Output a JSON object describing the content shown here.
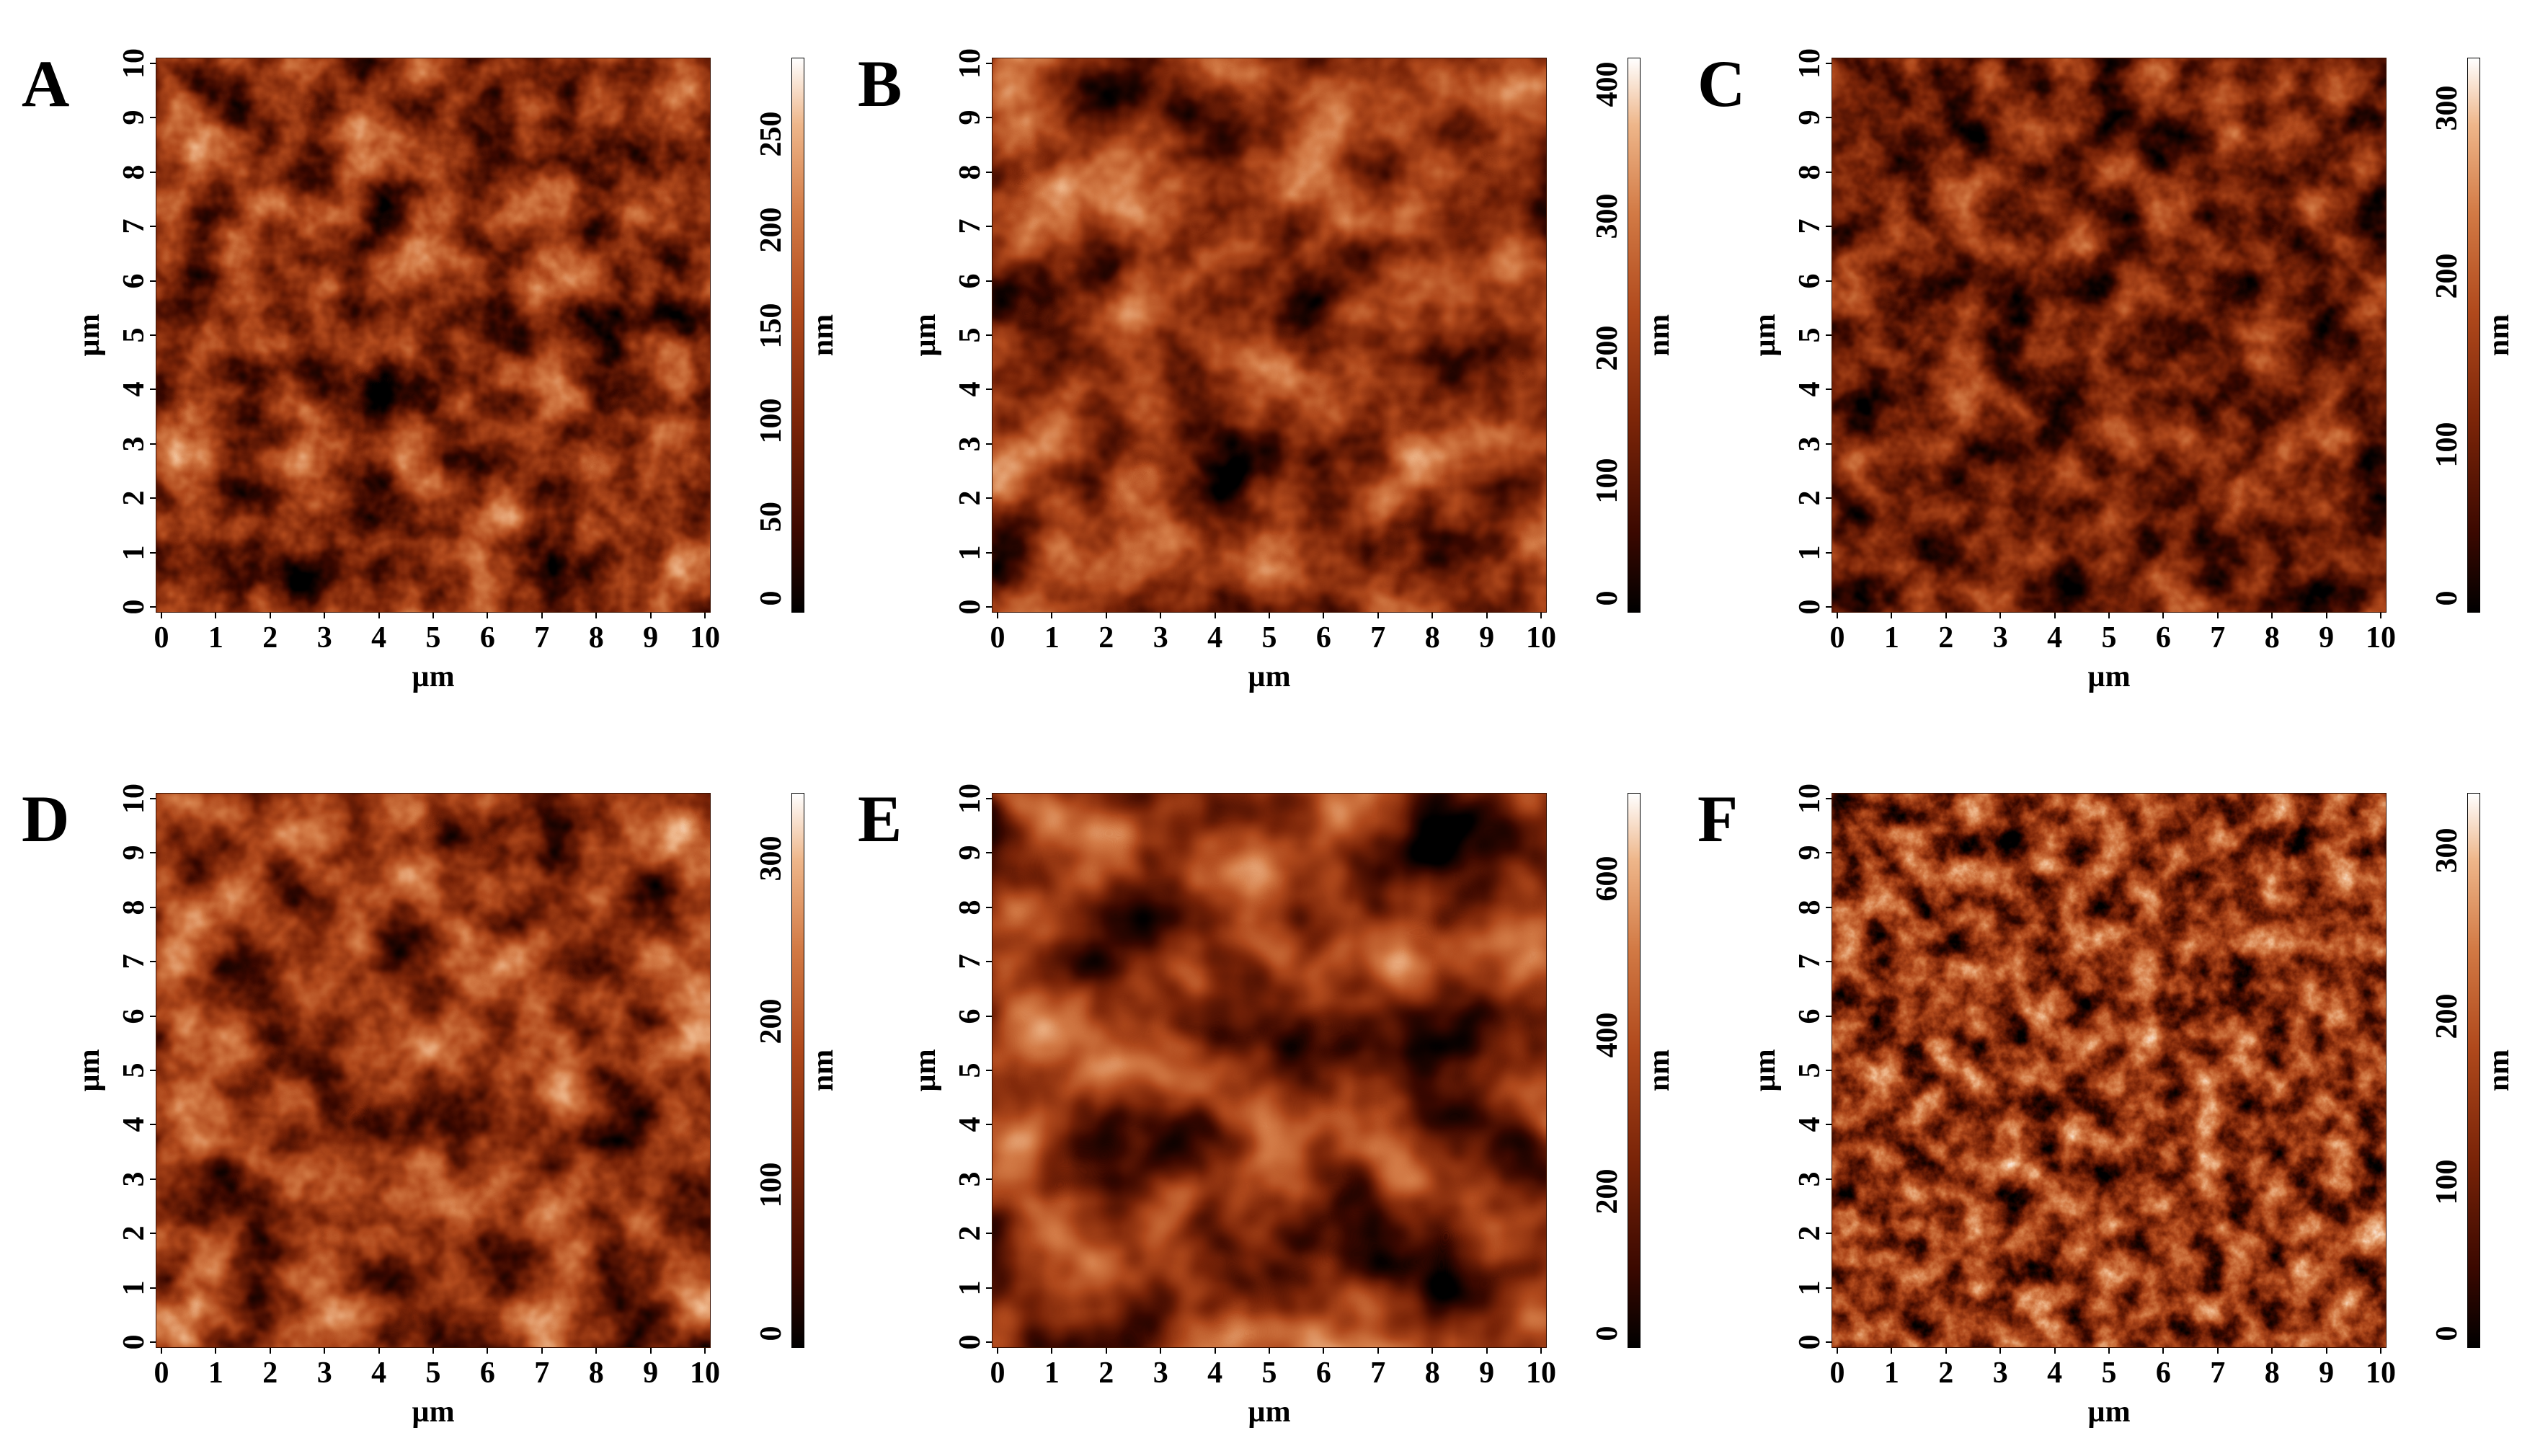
{
  "panels": [
    {
      "label": "A",
      "scale_ticks": [
        "0",
        "50",
        "100",
        "150",
        "200",
        "250"
      ],
      "scale_max": 290
    },
    {
      "label": "B",
      "scale_ticks": [
        "0",
        "100",
        "200",
        "300",
        "400"
      ],
      "scale_max": 420
    },
    {
      "label": "C",
      "scale_ticks": [
        "0",
        "100",
        "200",
        "300"
      ],
      "scale_max": 330
    },
    {
      "label": "D",
      "scale_ticks": [
        "0",
        "100",
        "200",
        "300"
      ],
      "scale_max": 340
    },
    {
      "label": "E",
      "scale_ticks": [
        "0",
        "200",
        "400",
        "600"
      ],
      "scale_max": 710
    },
    {
      "label": "F",
      "scale_ticks": [
        "0",
        "100",
        "200",
        "300"
      ],
      "scale_max": 335
    }
  ],
  "axis_ticks": [
    "0",
    "1",
    "2",
    "3",
    "4",
    "5",
    "6",
    "7",
    "8",
    "9",
    "10"
  ],
  "axis_unit": "µm",
  "scale_unit": "nm",
  "colormap": [
    "#000000",
    "#3a0800",
    "#7a2408",
    "#b0491c",
    "#d27a45",
    "#eeb68a",
    "#ffffff"
  ]
}
